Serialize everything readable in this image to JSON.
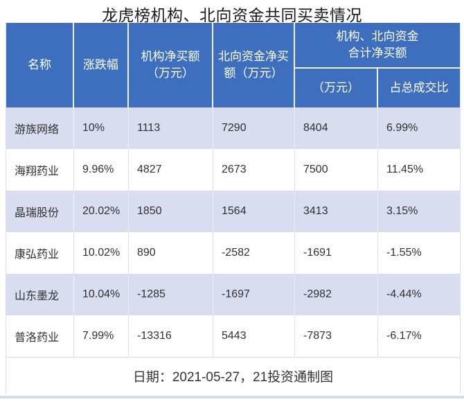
{
  "colors": {
    "header_bg": "#3e6fbe",
    "header_text": "#ffffff",
    "row_alt_bg": "#dadcf0",
    "grid_line": "#d8dcee",
    "title_text": "#1a1a1a",
    "body_text": "#303030",
    "footer_text": "#333333",
    "bottom_bar": "#d4daf1"
  },
  "chart_data": {
    "type": "table",
    "title": "龙虎榜机构、北向资金共同买卖情况",
    "header": {
      "name": "名称",
      "change": "涨跌幅",
      "inst": [
        "机构净买额",
        "（万元）"
      ],
      "north": [
        "北向资金净买",
        "额（万元）"
      ],
      "group": [
        "机构、北向资金",
        "合计净买额"
      ],
      "group_sub_amount": "（万元）",
      "group_sub_ratio": "占总成交比"
    },
    "columns_full": [
      "名称",
      "涨跌幅",
      "机构净买额（万元）",
      "北向资金净买额（万元）",
      "机构、北向资金合计净买额（万元）",
      "机构、北向资金合计净买额占总成交比"
    ],
    "rows": [
      [
        "游族网络",
        "10%",
        "1113",
        "7290",
        "8404",
        "6.99%"
      ],
      [
        "海翔药业",
        "9.96%",
        "4827",
        "2673",
        "7500",
        "11.45%"
      ],
      [
        "晶瑞股份",
        "20.02%",
        "1850",
        "1564",
        "3413",
        "3.15%"
      ],
      [
        "康弘药业",
        "10.02%",
        "890",
        "-2582",
        "-1691",
        "-1.55%"
      ],
      [
        "山东墨龙",
        "10.04%",
        "-1285",
        "-1697",
        "-2982",
        "-4.44%"
      ],
      [
        "普洛药业",
        "7.99%",
        "-13316",
        "5443",
        "-7873",
        "-6.17%"
      ]
    ],
    "footer_note": "日期：2021-05-27，21投资通制图"
  }
}
